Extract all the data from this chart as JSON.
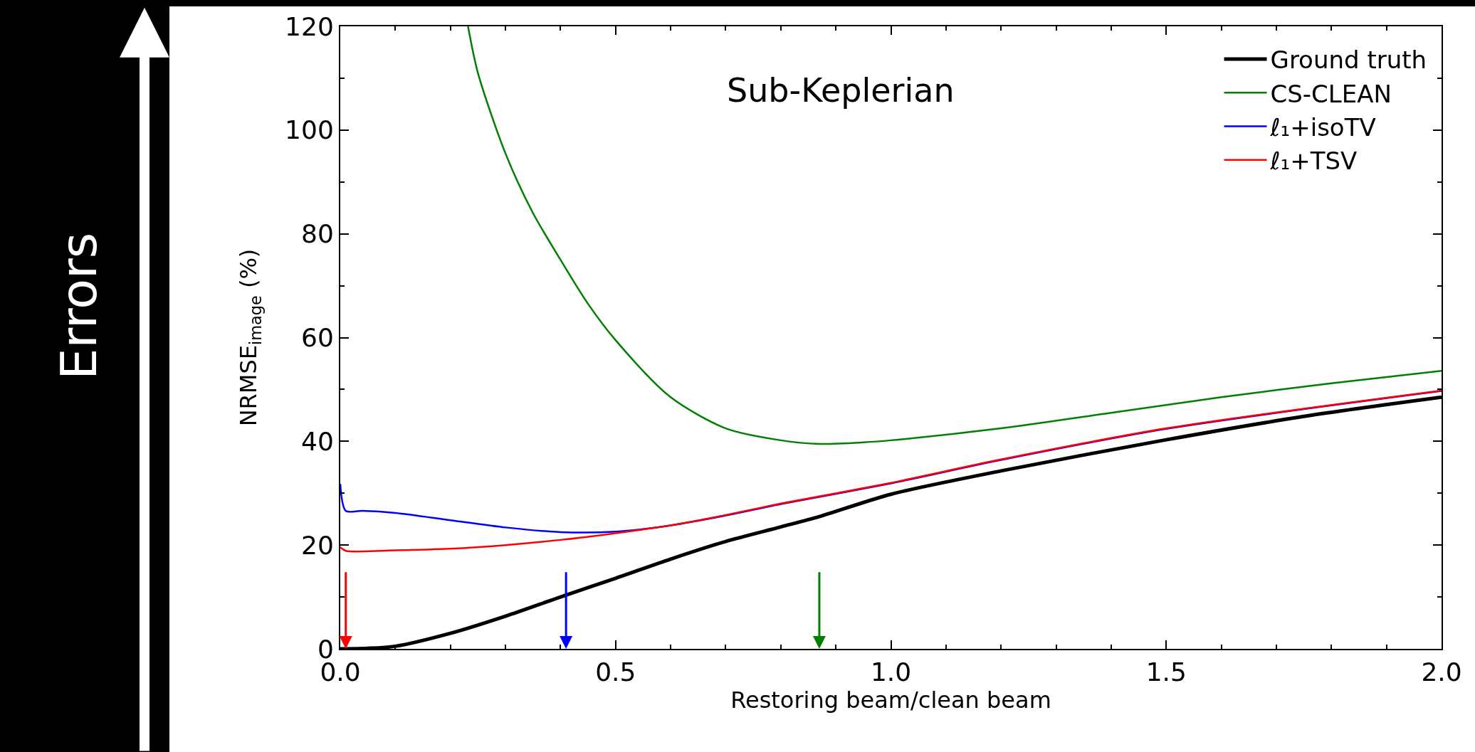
{
  "chart_data": {
    "type": "line",
    "xlabel": "Restoring beam/clean beam",
    "ylabel": "NRMSE$_{image}$ (%)",
    "annotations": [
      "Sub-Keplerian",
      "Errors"
    ],
    "xlim": [
      0,
      2
    ],
    "xticks": [
      {
        "value": 0,
        "label": "0.0"
      },
      0.5,
      {
        "value": 1,
        "label": "1.0"
      },
      1.5,
      {
        "value": 2,
        "label": "2.0"
      }
    ],
    "ylim": [
      0,
      120
    ],
    "yticks": [
      0,
      20,
      40,
      60,
      80,
      100,
      120
    ],
    "legend": "top right",
    "line_style": "solid",
    "marker": "none",
    "series": [
      {
        "name": "Ground truth",
        "color": "#000000",
        "x": [
          0,
          0.05,
          0.1,
          0.2,
          0.3,
          0.4,
          0.5,
          0.6,
          0.7,
          0.8,
          0.87,
          1.0,
          1.2,
          1.5,
          1.75,
          2.0
        ],
        "values": [
          0,
          0.1,
          0.5,
          3,
          6.3,
          10,
          13.6,
          17.3,
          20.7,
          23.5,
          25.5,
          29.8,
          34.3,
          40.3,
          44.8,
          48.5
        ]
      },
      {
        "name": "CS-CLEAN",
        "color": "#008000",
        "x": [
          0.232,
          0.25,
          0.3,
          0.35,
          0.4,
          0.45,
          0.5,
          0.6,
          0.7,
          0.8,
          0.87,
          0.95,
          1.0,
          1.2,
          1.4,
          1.6,
          1.8,
          2.0
        ],
        "values": [
          120,
          111,
          95.5,
          84,
          75,
          66.5,
          59.5,
          48.5,
          42.5,
          40.2,
          39.5,
          39.8,
          40.2,
          42.5,
          45.5,
          48.5,
          51.2,
          53.6
        ]
      },
      {
        "name": "ℓ₁+isoTV",
        "color": "#0000ff",
        "x": [
          0,
          0.01,
          0.04,
          0.1,
          0.2,
          0.3,
          0.4,
          0.5,
          0.6,
          0.7,
          0.8,
          1.0,
          1.2,
          1.5,
          2.0
        ],
        "values": [
          31.8,
          26.6,
          26.6,
          26.2,
          24.8,
          23.4,
          22.5,
          22.6,
          23.8,
          25.7,
          27.9,
          31.9,
          36.4,
          42.4,
          49.7
        ]
      },
      {
        "name": "ℓ₁+TSV",
        "color": "#ff0000",
        "x": [
          0,
          0.01,
          0.1,
          0.2,
          0.3,
          0.4,
          0.5,
          0.6,
          0.7,
          0.8,
          1.0,
          1.2,
          1.5,
          2.0
        ],
        "values": [
          19.6,
          18.9,
          19.0,
          19.3,
          20.0,
          21.0,
          22.3,
          23.8,
          25.8,
          28.0,
          32.0,
          36.5,
          42.5,
          49.8
        ]
      }
    ],
    "ref_lines": [
      {
        "axis": "x",
        "value": 0.01,
        "color": "#ff0000"
      },
      {
        "axis": "x",
        "value": 0.41,
        "color": "#0000ff"
      },
      {
        "axis": "x",
        "value": 0.87,
        "color": "#008000"
      }
    ]
  }
}
